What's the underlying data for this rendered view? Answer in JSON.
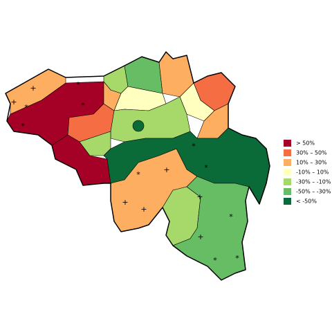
{
  "legend": {
    "items": [
      {
        "label": "> 50%",
        "color": "#a50026"
      },
      {
        "label": "30% – 50%",
        "color": "#f46d43"
      },
      {
        "label": "10% – 30%",
        "color": "#fdae61"
      },
      {
        "label": "-10% – 10%",
        "color": "#ffffbf"
      },
      {
        "label": "-30% – -10%",
        "color": "#a6d96a"
      },
      {
        "label": "-50% – -30%",
        "color": "#66bd63"
      },
      {
        "label": "< -50%",
        "color": "#0b6b38"
      }
    ]
  },
  "markers": [
    "+",
    "+",
    "*",
    "*",
    "*",
    "*",
    "*",
    "+",
    "+",
    "+",
    "*",
    "+",
    "+",
    "*",
    "*",
    "*",
    "*"
  ]
}
